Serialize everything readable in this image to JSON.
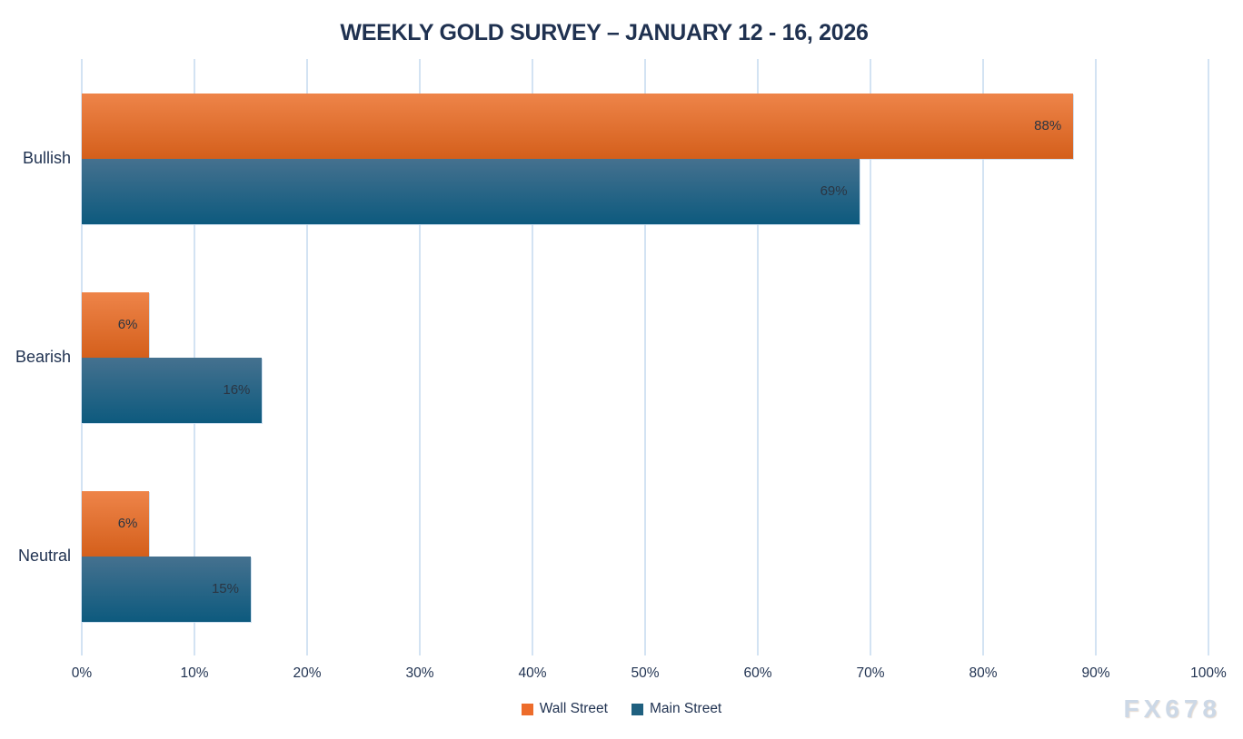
{
  "watermark": "FX678",
  "colors": {
    "background": "#ffffff",
    "text": "#1f3150",
    "value_label": "#2b3542",
    "gridline": "#d3e3f3",
    "watermark": "#ccd8e6"
  },
  "chart_data": {
    "type": "bar",
    "orientation": "horizontal",
    "title": "WEEKLY GOLD SURVEY – JANUARY 12 - 16, 2026",
    "categories": [
      "Bullish",
      "Bearish",
      "Neutral"
    ],
    "series": [
      {
        "name": "Wall Street",
        "values": [
          88,
          6,
          6
        ],
        "color": "#ed6c2b",
        "gradient": [
          "#ee8449",
          "#d45f1b"
        ]
      },
      {
        "name": "Main Street",
        "values": [
          69,
          16,
          15
        ],
        "color": "#1f607f",
        "gradient": [
          "#45718f",
          "#0d5a7e"
        ]
      }
    ],
    "xlabel": "",
    "ylabel": "",
    "xlim": [
      0,
      100
    ],
    "x_ticks": [
      "0%",
      "10%",
      "20%",
      "30%",
      "40%",
      "50%",
      "60%",
      "70%",
      "80%",
      "90%",
      "100%"
    ],
    "grid": true,
    "value_labels": true,
    "value_label_suffix": "%",
    "legend_position": "bottom"
  }
}
